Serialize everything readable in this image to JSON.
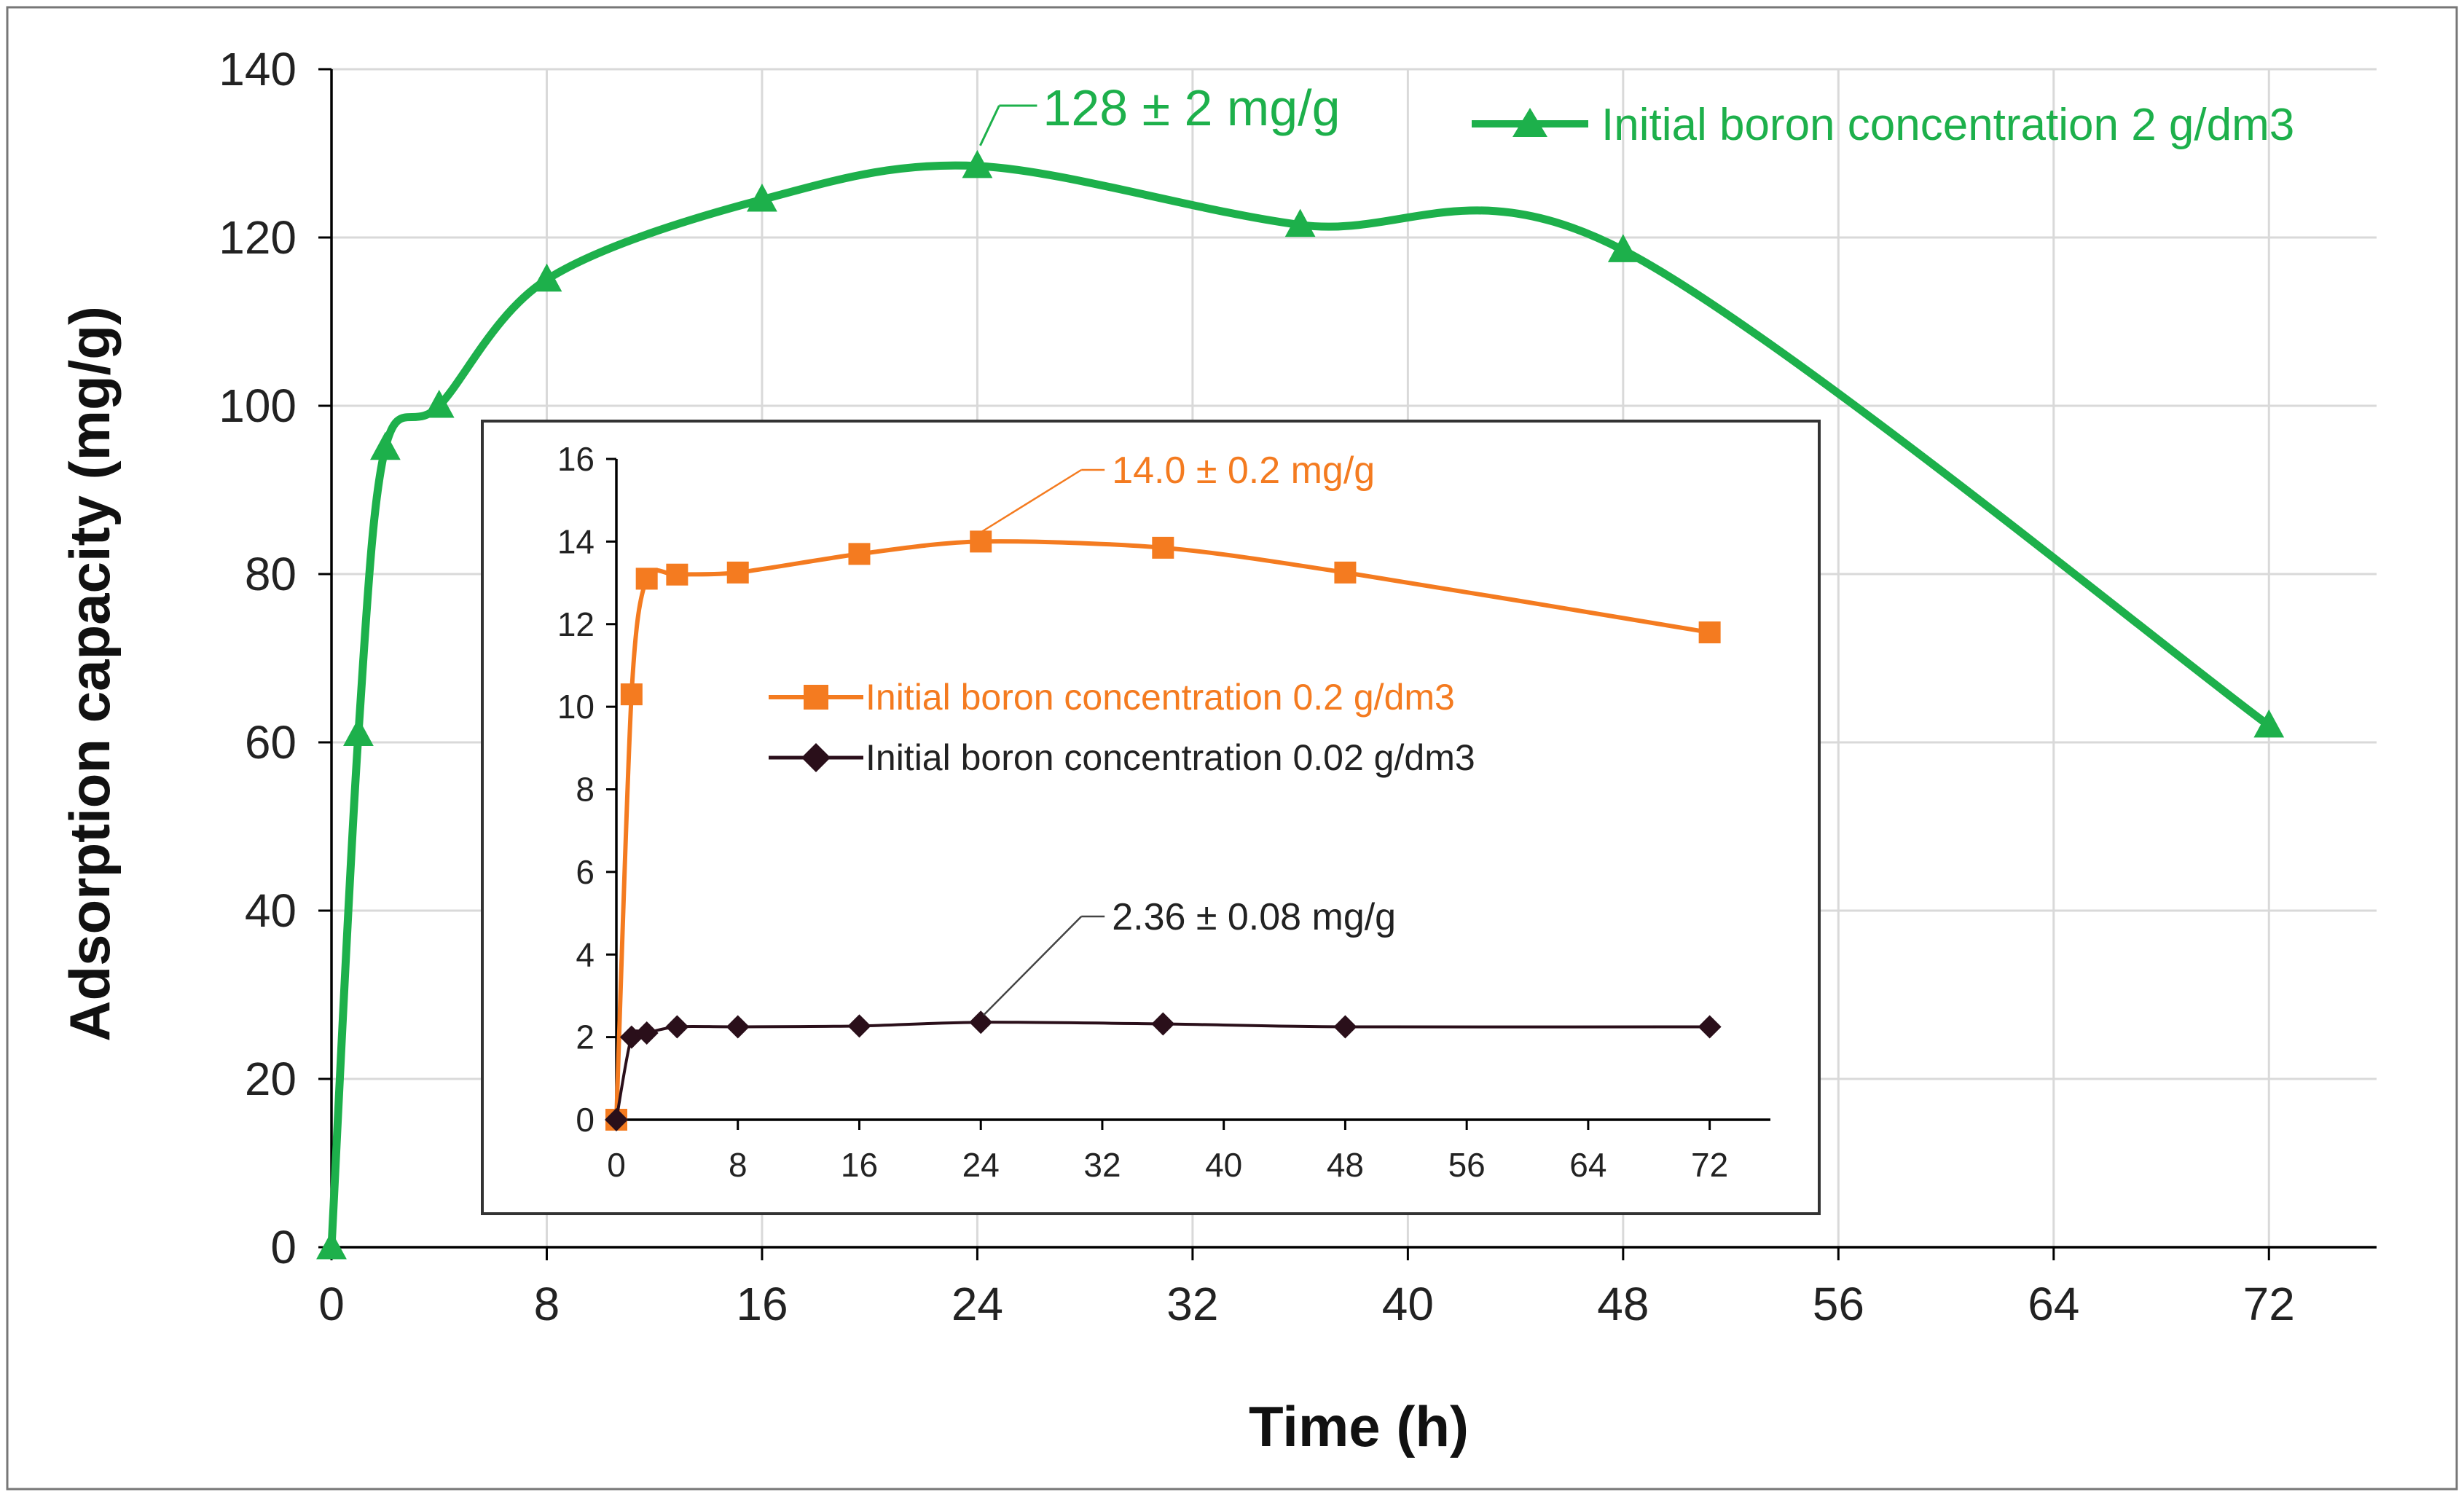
{
  "chart_data": [
    {
      "id": "main",
      "type": "line",
      "title": "",
      "xlabel": "Time (h)",
      "ylabel": "Adsorption capacity (mg/g)",
      "xlim": [
        0,
        76
      ],
      "ylim": [
        0,
        140
      ],
      "xticks": [
        0,
        8,
        16,
        24,
        32,
        40,
        48,
        56,
        64,
        72
      ],
      "yticks": [
        0,
        20,
        40,
        60,
        80,
        100,
        120,
        140
      ],
      "grid": true,
      "series": [
        {
          "name": "Initial boron concentration 2 g/dm3",
          "color": "#1db04b",
          "marker": "triangle",
          "x": [
            0,
            1,
            2,
            4,
            8,
            16,
            24,
            36,
            48,
            72
          ],
          "y": [
            0,
            61,
            95,
            100,
            115,
            124.5,
            128.5,
            121.5,
            118.5,
            62
          ]
        }
      ],
      "annotations": [
        {
          "text": "128 ± 2 mg/g",
          "x": 24,
          "y": 128.5,
          "color": "#1db04b"
        }
      ]
    },
    {
      "id": "inset",
      "type": "line",
      "title": "",
      "xlabel": "",
      "ylabel": "",
      "xlim": [
        0,
        76
      ],
      "ylim": [
        0,
        16
      ],
      "xticks": [
        0,
        8,
        16,
        24,
        32,
        40,
        48,
        56,
        64,
        72
      ],
      "yticks": [
        0,
        2,
        4,
        6,
        8,
        10,
        12,
        14,
        16
      ],
      "grid": false,
      "series": [
        {
          "name": "Initial boron concentration 0.2 g/dm3",
          "color": "#f47b20",
          "marker": "square",
          "x": [
            0,
            1,
            2,
            4,
            8,
            16,
            24,
            36,
            48,
            72
          ],
          "y": [
            0,
            10.3,
            13.1,
            13.2,
            13.25,
            13.7,
            14.0,
            13.85,
            13.25,
            11.8
          ]
        },
        {
          "name": "Initial boron concentration 0.02 g/dm3",
          "color": "#2a0f1a",
          "marker": "diamond",
          "x": [
            0,
            1,
            2,
            4,
            8,
            16,
            24,
            36,
            48,
            72
          ],
          "y": [
            0,
            2.0,
            2.1,
            2.25,
            2.25,
            2.27,
            2.36,
            2.32,
            2.25,
            2.25
          ]
        }
      ],
      "annotations": [
        {
          "text": "14.0 ± 0.2 mg/g",
          "x": 24,
          "y": 14.0,
          "color": "#f47b20"
        },
        {
          "text": "2.36 ± 0.08 mg/g",
          "x": 24,
          "y": 2.36,
          "color": "#222222"
        }
      ]
    }
  ]
}
